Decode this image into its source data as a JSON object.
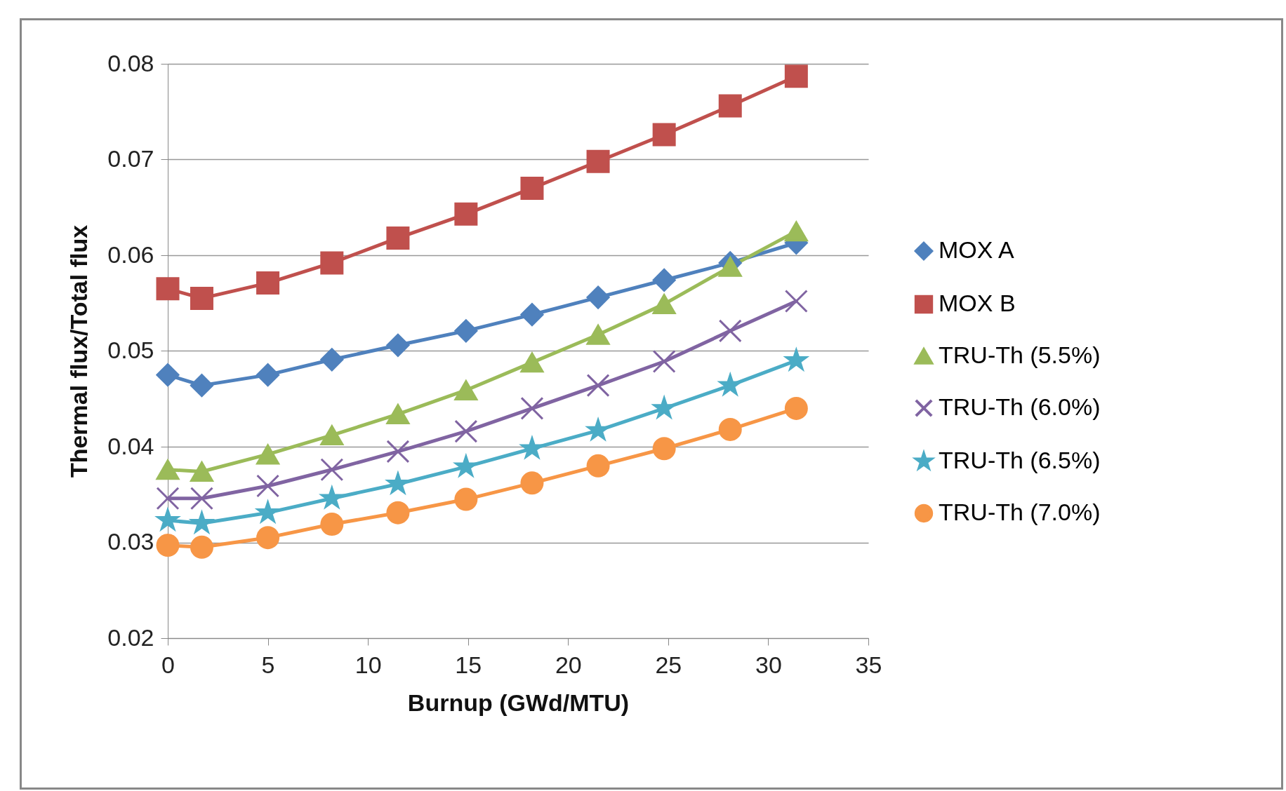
{
  "chart_data": {
    "type": "line",
    "xlabel": "Burnup (GWd/MTU)",
    "ylabel": "Thermal flux/Total flux",
    "x": [
      0,
      1.7,
      5,
      8.2,
      11.5,
      14.9,
      18.2,
      21.5,
      24.8,
      28.1,
      31.4
    ],
    "xlim": [
      0,
      35
    ],
    "xticks": [
      0,
      5,
      10,
      15,
      20,
      25,
      30,
      35
    ],
    "ylim": [
      0.02,
      0.08
    ],
    "yticks": [
      0.02,
      0.03,
      0.04,
      0.05,
      0.06,
      0.07,
      0.08
    ],
    "grid": "y",
    "legend": "right",
    "line_style": "solid",
    "series": [
      {
        "name": "MOX A",
        "color": "#4f81bd",
        "marker": "diamond",
        "values": [
          0.0475,
          0.0464,
          0.0475,
          0.0491,
          0.0506,
          0.0521,
          0.0538,
          0.0556,
          0.0574,
          0.0592,
          0.0613
        ]
      },
      {
        "name": "MOX B",
        "color": "#c0504d",
        "marker": "square",
        "values": [
          0.0565,
          0.0555,
          0.0571,
          0.0592,
          0.0618,
          0.0643,
          0.067,
          0.0698,
          0.0726,
          0.0756,
          0.0787
        ]
      },
      {
        "name": "TRU-Th (5.5%)",
        "color": "#9bbb59",
        "marker": "triangle",
        "values": [
          0.0376,
          0.0374,
          0.0392,
          0.0412,
          0.0434,
          0.0459,
          0.0488,
          0.0517,
          0.0549,
          0.0588,
          0.0625
        ]
      },
      {
        "name": "TRU-Th (6.0%)",
        "color": "#8064a2",
        "marker": "cross",
        "values": [
          0.0346,
          0.0346,
          0.0359,
          0.0376,
          0.0395,
          0.0416,
          0.044,
          0.0464,
          0.0489,
          0.0521,
          0.0552
        ]
      },
      {
        "name": "TRU-Th (6.5%)",
        "color": "#4bacc6",
        "marker": "star",
        "values": [
          0.0323,
          0.032,
          0.0331,
          0.0346,
          0.0361,
          0.0379,
          0.0398,
          0.0417,
          0.044,
          0.0464,
          0.049
        ]
      },
      {
        "name": "TRU-Th (7.0%)",
        "color": "#f79646",
        "marker": "circle",
        "values": [
          0.0297,
          0.0295,
          0.0305,
          0.0319,
          0.0331,
          0.0345,
          0.0362,
          0.038,
          0.0398,
          0.0418,
          0.044
        ]
      }
    ]
  }
}
